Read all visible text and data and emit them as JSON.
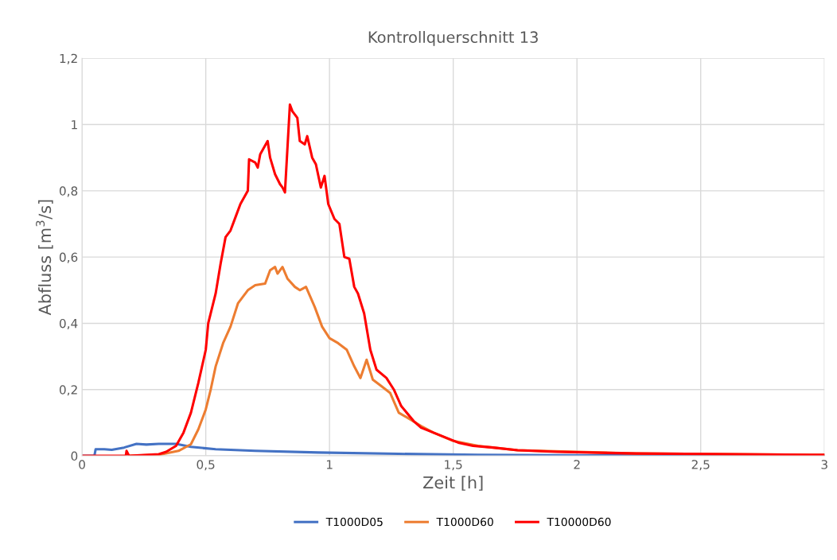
{
  "chart_data": {
    "type": "line",
    "title": "Kontrollquerschnitt 13",
    "xlabel": "Zeit [h]",
    "ylabel": "Abfluss [m$^{3}$/s]",
    "xlim": [
      0,
      3
    ],
    "ylim": [
      0,
      1.2
    ],
    "xticks": [
      0,
      {
        "value": 0.5,
        "label": "0,5"
      },
      1,
      {
        "value": 1.5,
        "label": "1,5"
      },
      2,
      {
        "value": 2.5,
        "label": "2,5"
      },
      3
    ],
    "yticks": [
      0,
      {
        "value": 0.2,
        "label": "0,2"
      },
      {
        "value": 0.4,
        "label": "0,4"
      },
      {
        "value": 0.6,
        "label": "0,6"
      },
      {
        "value": 0.8,
        "label": "0,8"
      },
      1,
      {
        "value": 1.2,
        "label": "1,2"
      }
    ],
    "grid": true,
    "legend": "bottom",
    "marker": "none",
    "line_style": "solid",
    "series": [
      {
        "name": "T1000D05",
        "color": "#4472c4",
        "x": [
          0,
          0.05,
          0.055,
          0.09,
          0.12,
          0.17,
          0.22,
          0.26,
          0.31,
          0.38,
          0.44,
          0.54,
          0.7,
          0.955,
          1.28,
          1.6,
          2.25,
          3
        ],
        "values": [
          0,
          0,
          0.02,
          0.02,
          0.018,
          0.025,
          0.036,
          0.034,
          0.036,
          0.036,
          0.027,
          0.02,
          0.015,
          0.01,
          0.006,
          0.003,
          0.001,
          0
        ]
      },
      {
        "name": "T1000D60",
        "color": "#ed7d31",
        "x": [
          0.19,
          0.31,
          0.39,
          0.44,
          0.47,
          0.5,
          0.52,
          0.54,
          0.57,
          0.6,
          0.63,
          0.67,
          0.7,
          0.74,
          0.76,
          0.78,
          0.79,
          0.81,
          0.83,
          0.86,
          0.88,
          0.905,
          0.94,
          0.97,
          1.0,
          1.035,
          1.07,
          1.1,
          1.125,
          1.15,
          1.175,
          1.21,
          1.245,
          1.28,
          1.315,
          1.37,
          1.42,
          1.5,
          1.6,
          1.76,
          2.24,
          3
        ],
        "values": [
          0,
          0.003,
          0.015,
          0.035,
          0.08,
          0.14,
          0.2,
          0.27,
          0.34,
          0.39,
          0.46,
          0.5,
          0.515,
          0.52,
          0.56,
          0.57,
          0.55,
          0.57,
          0.535,
          0.51,
          0.5,
          0.51,
          0.45,
          0.39,
          0.355,
          0.34,
          0.32,
          0.27,
          0.235,
          0.29,
          0.23,
          0.21,
          0.19,
          0.13,
          0.115,
          0.09,
          0.07,
          0.045,
          0.03,
          0.017,
          0.007,
          0.003
        ]
      },
      {
        "name": "T10000D60",
        "color": "#ff0000",
        "x": [
          0,
          0.177,
          0.18,
          0.19,
          0.31,
          0.34,
          0.38,
          0.41,
          0.44,
          0.47,
          0.5,
          0.51,
          0.54,
          0.56,
          0.58,
          0.6,
          0.62,
          0.64,
          0.67,
          0.675,
          0.7,
          0.71,
          0.72,
          0.75,
          0.76,
          0.78,
          0.8,
          0.81,
          0.82,
          0.84,
          0.85,
          0.87,
          0.88,
          0.9,
          0.91,
          0.93,
          0.945,
          0.965,
          0.98,
          0.995,
          1.02,
          1.04,
          1.06,
          1.08,
          1.1,
          1.115,
          1.14,
          1.165,
          1.19,
          1.23,
          1.26,
          1.29,
          1.34,
          1.37,
          1.42,
          1.47,
          1.52,
          1.58,
          1.66,
          1.76,
          1.92,
          2.24,
          3
        ],
        "values": [
          0,
          0,
          0.015,
          0,
          0.005,
          0.012,
          0.03,
          0.07,
          0.13,
          0.22,
          0.32,
          0.4,
          0.49,
          0.58,
          0.66,
          0.68,
          0.72,
          0.76,
          0.8,
          0.895,
          0.885,
          0.87,
          0.91,
          0.95,
          0.9,
          0.85,
          0.82,
          0.81,
          0.795,
          1.06,
          1.04,
          1.02,
          0.95,
          0.94,
          0.965,
          0.9,
          0.88,
          0.81,
          0.845,
          0.76,
          0.715,
          0.7,
          0.6,
          0.595,
          0.51,
          0.49,
          0.43,
          0.32,
          0.26,
          0.235,
          0.2,
          0.15,
          0.105,
          0.085,
          0.07,
          0.055,
          0.04,
          0.03,
          0.025,
          0.017,
          0.012,
          0.007,
          0.003
        ]
      }
    ]
  }
}
